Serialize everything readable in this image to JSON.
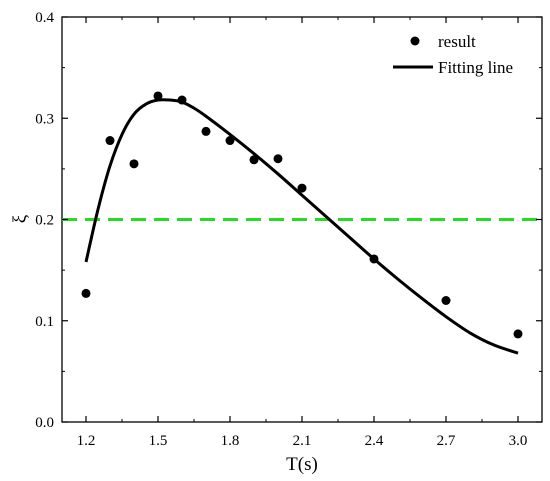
{
  "chart_data": {
    "type": "scatter",
    "title": "",
    "xlabel": "T(s)",
    "ylabel": "ξ",
    "xlim": [
      1.1,
      3.1
    ],
    "ylim": [
      0.0,
      0.4
    ],
    "xticks": [
      1.2,
      1.5,
      1.8,
      2.1,
      2.4,
      2.7,
      3.0
    ],
    "xtick_labels": [
      "1.2",
      "1.5",
      "1.8",
      "2.1",
      "2.4",
      "2.7",
      "3.0"
    ],
    "yticks": [
      0.0,
      0.1,
      0.2,
      0.3,
      0.4
    ],
    "ytick_labels": [
      "0.0",
      "0.1",
      "0.2",
      "0.3",
      "0.4"
    ],
    "grid": false,
    "legend_position": "top-right",
    "series": [
      {
        "name": "result",
        "type": "scatter",
        "color": "#000000",
        "x": [
          1.2,
          1.3,
          1.4,
          1.5,
          1.6,
          1.7,
          1.8,
          1.9,
          2.0,
          2.1,
          2.4,
          2.7,
          3.0
        ],
        "y": [
          0.127,
          0.278,
          0.255,
          0.322,
          0.318,
          0.287,
          0.278,
          0.259,
          0.26,
          0.231,
          0.161,
          0.12,
          0.087
        ]
      },
      {
        "name": "Fitting line",
        "type": "line",
        "color": "#000000",
        "x": [
          1.2,
          1.25,
          1.3,
          1.35,
          1.4,
          1.45,
          1.5,
          1.55,
          1.6,
          1.65,
          1.7,
          1.8,
          1.9,
          2.0,
          2.1,
          2.2,
          2.3,
          2.4,
          2.5,
          2.6,
          2.7,
          2.8,
          2.9,
          3.0
        ],
        "y": [
          0.158,
          0.21,
          0.253,
          0.284,
          0.304,
          0.314,
          0.318,
          0.318,
          0.316,
          0.31,
          0.302,
          0.284,
          0.265,
          0.245,
          0.224,
          0.203,
          0.182,
          0.161,
          0.141,
          0.122,
          0.104,
          0.088,
          0.076,
          0.068
        ]
      }
    ],
    "reference_lines": [
      {
        "axis": "y",
        "value": 0.2,
        "color": "#22dd22",
        "style": "dashed"
      }
    ]
  }
}
